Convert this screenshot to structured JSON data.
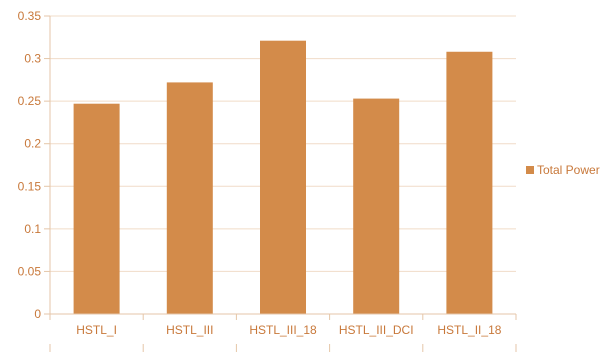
{
  "chart_data": {
    "type": "bar",
    "categories": [
      "HSTL_I",
      "HSTL_III",
      "HSTL_III_18",
      "HSTL_III_DCI",
      "HSTL_II_18"
    ],
    "series": [
      {
        "name": "Total Power",
        "values": [
          0.247,
          0.272,
          0.321,
          0.253,
          0.308
        ]
      }
    ],
    "ylim": [
      0,
      0.35
    ],
    "yticks": [
      "0",
      "0.05",
      "0.1",
      "0.15",
      "0.2",
      "0.25",
      "0.3",
      "0.35"
    ],
    "ytick_values": [
      0,
      0.05,
      0.1,
      0.15,
      0.2,
      0.25,
      0.3,
      0.35
    ],
    "grid": true,
    "legend_position": "right",
    "colors": {
      "bar": "#d38b4a",
      "text": "#c8783a",
      "grid": "#f1dcc8",
      "axis": "#e5c6a8"
    }
  }
}
